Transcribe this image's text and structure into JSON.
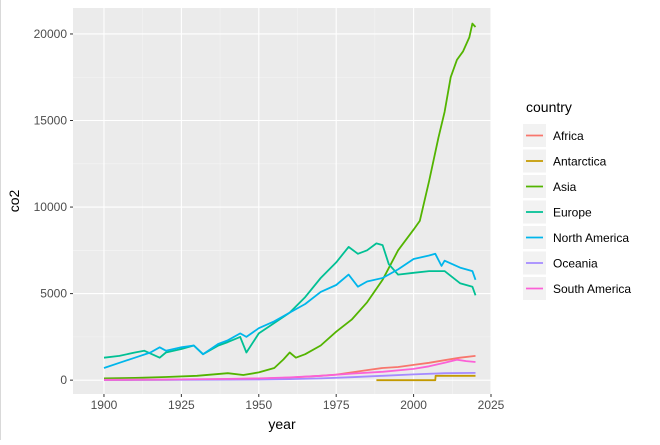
{
  "chart_data": {
    "type": "line",
    "title": "",
    "xlabel": "year",
    "ylabel": "co2",
    "xlim": [
      1890,
      2025
    ],
    "ylim": [
      -800,
      21500
    ],
    "x_ticks": [
      1900,
      1925,
      1950,
      1975,
      2000,
      2025
    ],
    "y_ticks": [
      0,
      5000,
      10000,
      15000,
      20000
    ],
    "x_tick_labels": [
      "1900",
      "1925",
      "1950",
      "1975",
      "2000",
      "2025"
    ],
    "y_tick_labels": [
      "0",
      "5000",
      "10000",
      "15000",
      "20000"
    ],
    "legend_title": "country",
    "legend_position": "right",
    "grid": true,
    "series": [
      {
        "name": "Africa",
        "color": "#F8766D",
        "x": [
          1900,
          1910,
          1920,
          1930,
          1940,
          1950,
          1960,
          1970,
          1975,
          1980,
          1985,
          1990,
          1995,
          2000,
          2005,
          2010,
          2015,
          2020
        ],
        "y": [
          10,
          15,
          25,
          40,
          60,
          90,
          150,
          250,
          320,
          450,
          580,
          700,
          760,
          880,
          1000,
          1150,
          1300,
          1400
        ]
      },
      {
        "name": "Antarctica",
        "color": "#C49A00",
        "x": [
          1988,
          1995,
          2000,
          2005,
          2007,
          2007.1,
          2010,
          2015,
          2020
        ],
        "y": [
          0,
          0,
          0,
          0,
          0,
          250,
          250,
          250,
          250
        ]
      },
      {
        "name": "Asia",
        "color": "#53B400",
        "x": [
          1900,
          1910,
          1920,
          1930,
          1940,
          1945,
          1950,
          1955,
          1958,
          1960,
          1962,
          1965,
          1970,
          1975,
          1980,
          1985,
          1990,
          1995,
          2000,
          2002,
          2005,
          2008,
          2010,
          2012,
          2014,
          2016,
          2018,
          2019,
          2020
        ],
        "y": [
          100,
          130,
          180,
          250,
          400,
          300,
          450,
          700,
          1200,
          1600,
          1300,
          1500,
          2000,
          2800,
          3500,
          4500,
          5800,
          7500,
          8700,
          9200,
          11500,
          14000,
          15500,
          17500,
          18500,
          19000,
          19800,
          20600,
          20400
        ]
      },
      {
        "name": "Europe",
        "color": "#00C094",
        "x": [
          1900,
          1905,
          1910,
          1913,
          1918,
          1920,
          1925,
          1929,
          1932,
          1937,
          1940,
          1944,
          1946,
          1950,
          1955,
          1960,
          1965,
          1970,
          1975,
          1979,
          1982,
          1985,
          1988,
          1990,
          1992,
          1995,
          2000,
          2005,
          2010,
          2015,
          2019,
          2020
        ],
        "y": [
          1300,
          1400,
          1600,
          1700,
          1300,
          1600,
          1800,
          2000,
          1500,
          2000,
          2200,
          2500,
          1600,
          2700,
          3300,
          3900,
          4800,
          5900,
          6800,
          7700,
          7300,
          7500,
          7900,
          7800,
          6700,
          6100,
          6200,
          6300,
          6300,
          5600,
          5400,
          4900
        ]
      },
      {
        "name": "North America",
        "color": "#00B6EB",
        "x": [
          1900,
          1905,
          1910,
          1915,
          1918,
          1920,
          1925,
          1929,
          1932,
          1937,
          1940,
          1944,
          1946,
          1950,
          1955,
          1960,
          1965,
          1970,
          1975,
          1979,
          1982,
          1985,
          1990,
          1995,
          2000,
          2005,
          2007,
          2009,
          2010,
          2015,
          2019,
          2020
        ],
        "y": [
          700,
          1000,
          1300,
          1600,
          1900,
          1700,
          1900,
          2000,
          1500,
          2100,
          2300,
          2700,
          2500,
          3000,
          3400,
          3900,
          4400,
          5100,
          5500,
          6100,
          5400,
          5700,
          5900,
          6400,
          7000,
          7200,
          7300,
          6600,
          6900,
          6500,
          6300,
          5800
        ]
      },
      {
        "name": "Oceania",
        "color": "#A58AFF",
        "x": [
          1900,
          1920,
          1940,
          1950,
          1960,
          1970,
          1980,
          1990,
          2000,
          2010,
          2020
        ],
        "y": [
          10,
          20,
          30,
          40,
          60,
          100,
          170,
          250,
          330,
          400,
          420
        ]
      },
      {
        "name": "South America",
        "color": "#FB61D7",
        "x": [
          1900,
          1920,
          1940,
          1950,
          1960,
          1970,
          1980,
          1990,
          2000,
          2005,
          2010,
          2014,
          2017,
          2020
        ],
        "y": [
          20,
          40,
          70,
          100,
          160,
          250,
          380,
          480,
          650,
          800,
          1000,
          1180,
          1100,
          1050
        ]
      }
    ]
  }
}
